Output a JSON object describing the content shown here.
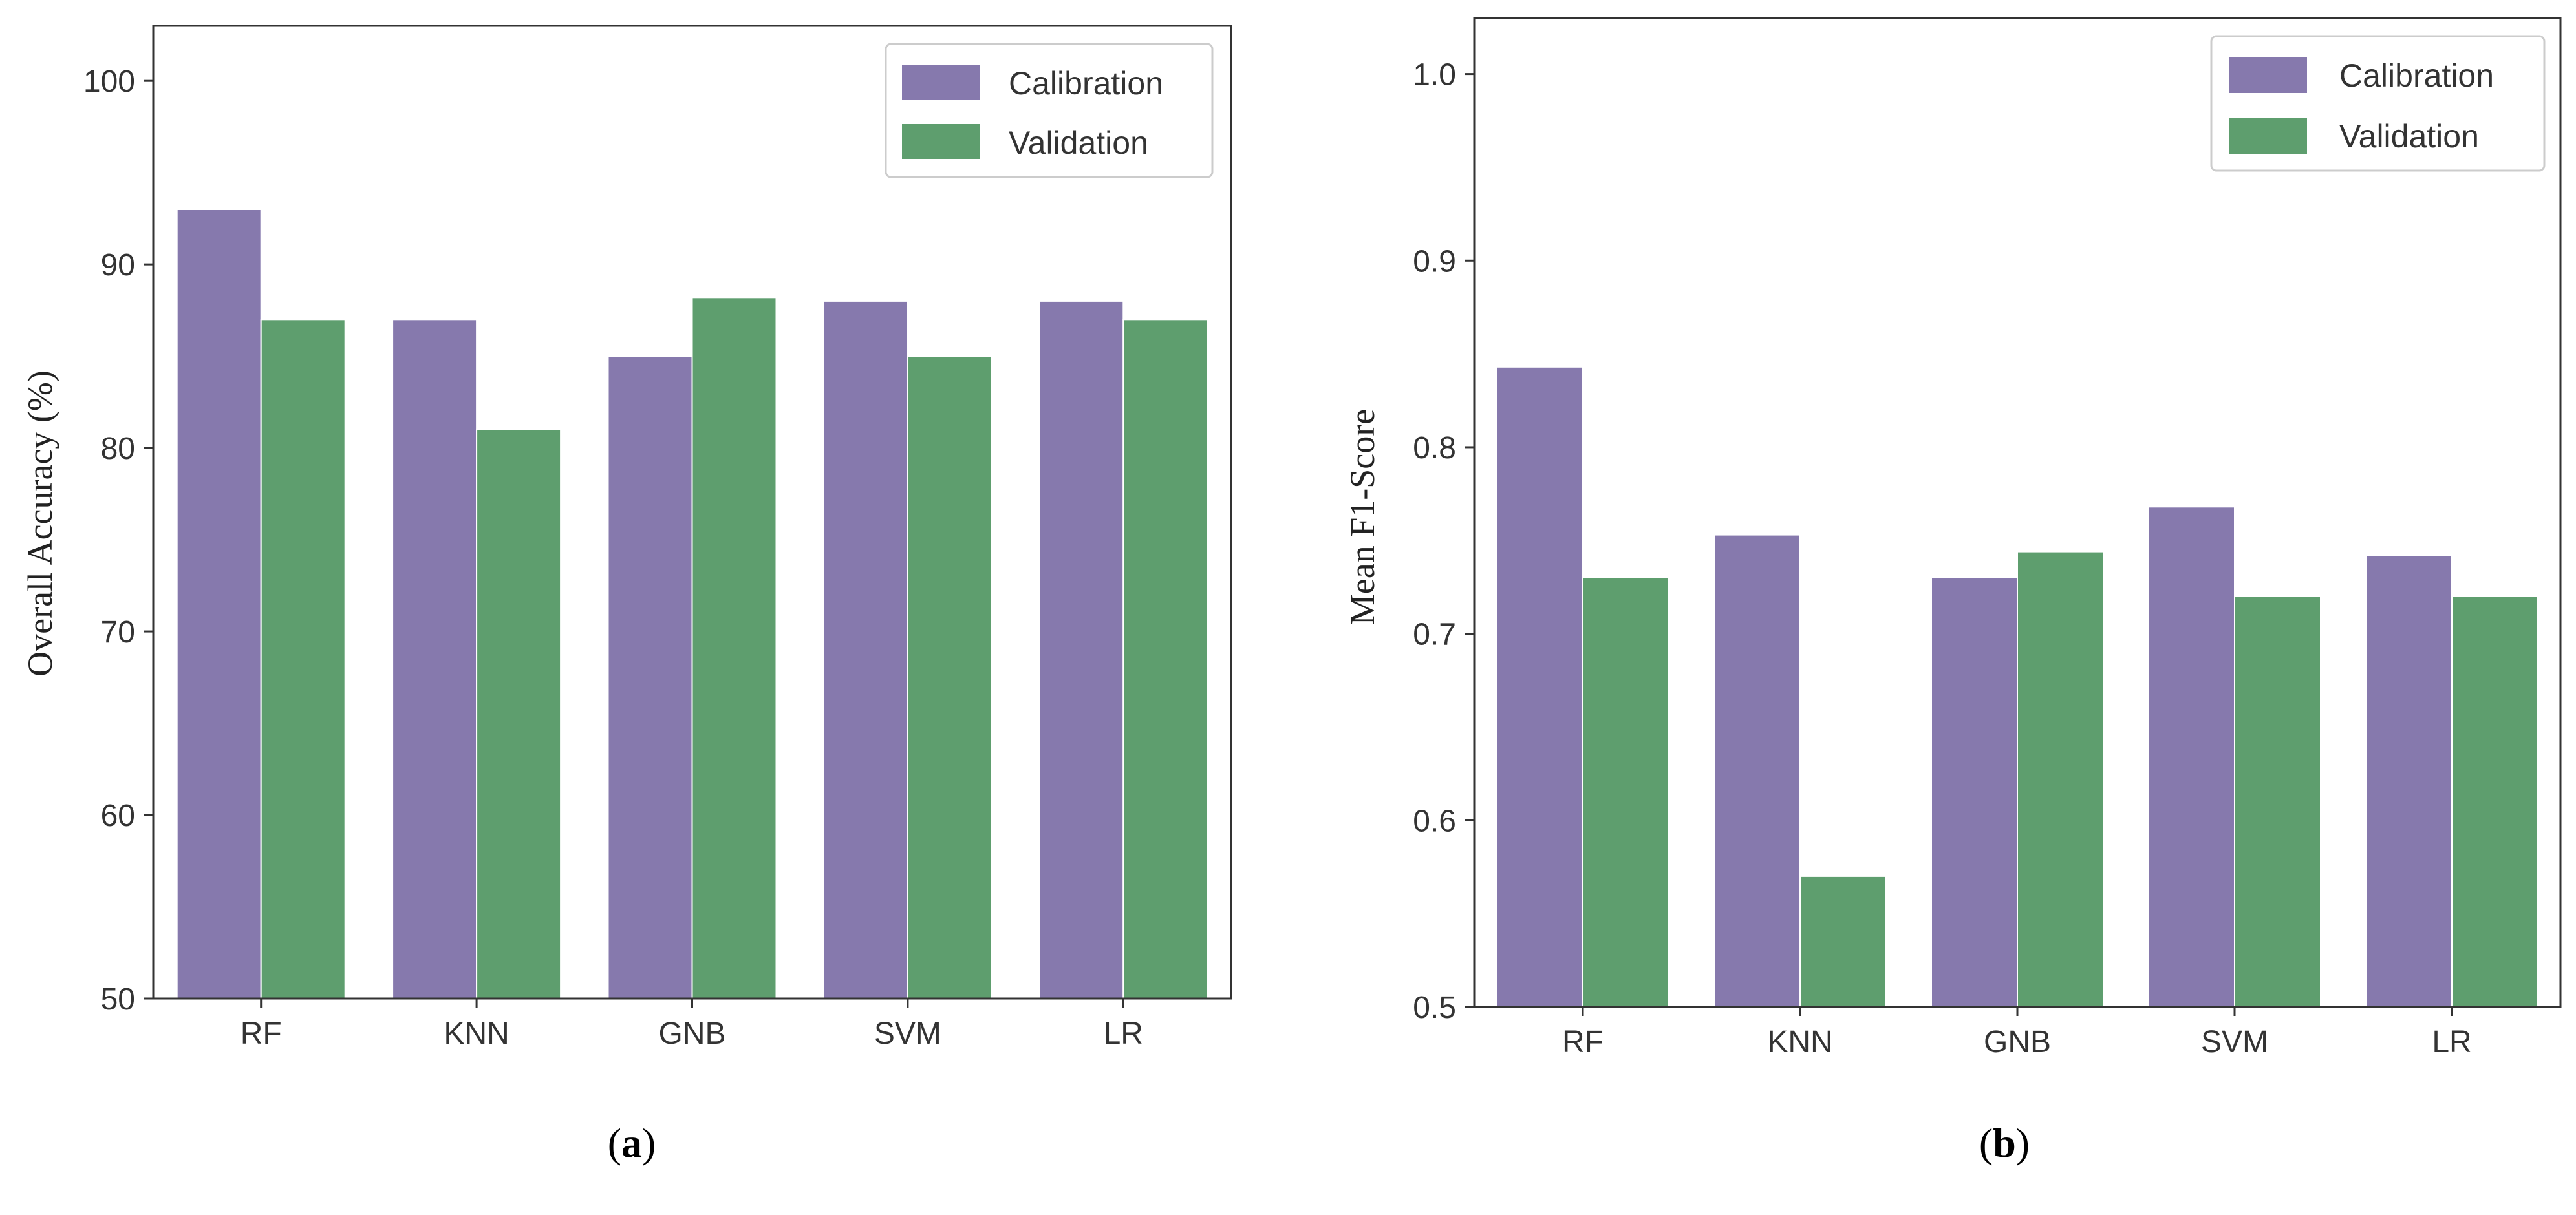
{
  "colors": {
    "calibration": "#8679ad",
    "validation": "#5e9e6e",
    "axis": "#333333"
  },
  "chart_data": [
    {
      "type": "bar",
      "panel": "a",
      "caption": {
        "open": "(",
        "letter": "a",
        "close": ")"
      },
      "categories": [
        "RF",
        "KNN",
        "GNB",
        "SVM",
        "LR"
      ],
      "series": [
        {
          "name": "Calibration",
          "values": [
            93,
            87,
            85,
            88,
            88
          ]
        },
        {
          "name": "Validation",
          "values": [
            87,
            81,
            88.2,
            85,
            87
          ]
        }
      ],
      "ylabel": "Overall Accuracy (%)",
      "xlabel": "",
      "ylim": [
        50,
        103
      ],
      "yticks": [
        50,
        60,
        70,
        80,
        90,
        100
      ],
      "ytick_labels": [
        "50",
        "60",
        "70",
        "80",
        "90",
        "100"
      ],
      "legend": {
        "position": "top-right",
        "labels": [
          "Calibration",
          "Validation"
        ]
      },
      "grid": false
    },
    {
      "type": "bar",
      "panel": "b",
      "caption": {
        "open": "(",
        "letter": "b",
        "close": ")"
      },
      "categories": [
        "RF",
        "KNN",
        "GNB",
        "SVM",
        "LR"
      ],
      "series": [
        {
          "name": "Calibration",
          "values": [
            0.843,
            0.753,
            0.73,
            0.768,
            0.742
          ]
        },
        {
          "name": "Validation",
          "values": [
            0.73,
            0.57,
            0.744,
            0.72,
            0.72
          ]
        }
      ],
      "ylabel": "Mean F1-Score",
      "xlabel": "",
      "ylim": [
        0.5,
        1.03
      ],
      "yticks": [
        0.5,
        0.6,
        0.7,
        0.8,
        0.9,
        1.0
      ],
      "ytick_labels": [
        "0.5",
        "0.6",
        "0.7",
        "0.8",
        "0.9",
        "1.0"
      ],
      "legend": {
        "position": "top-right",
        "labels": [
          "Calibration",
          "Validation"
        ]
      },
      "grid": false
    }
  ]
}
